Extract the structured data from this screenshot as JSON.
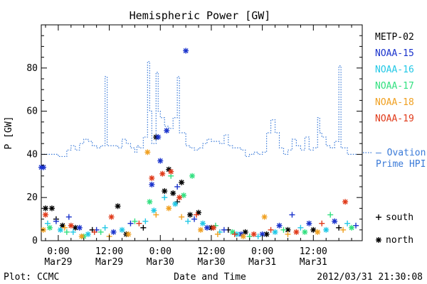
{
  "chart_data": {
    "type": "scatter",
    "title": "Hemispheric Power [GW]",
    "ylabel": "P [GW]",
    "xlabel": "Date and Time",
    "ylim": [
      0,
      100
    ],
    "xlim": [
      "2012-03-28T20:00",
      "2012-03-31T23:30"
    ],
    "grid": false,
    "legend_position": "right",
    "y_ticks": [
      0,
      20,
      40,
      60,
      80
    ],
    "x_ticks": [
      {
        "x": "2012-03-29T00:00",
        "time": "0:00",
        "date": "Mar29"
      },
      {
        "x": "2012-03-29T12:00",
        "time": "12:00",
        "date": "Mar29"
      },
      {
        "x": "2012-03-30T00:00",
        "time": "0:00",
        "date": "Mar30"
      },
      {
        "x": "2012-03-30T12:00",
        "time": "12:00",
        "date": "Mar30"
      },
      {
        "x": "2012-03-31T00:00",
        "time": "0:00",
        "date": "Mar31"
      },
      {
        "x": "2012-03-31T12:00",
        "time": "12:00",
        "date": "Mar31"
      }
    ],
    "legend": [
      {
        "name": "METP-02",
        "color": "#000000"
      },
      {
        "name": "NOAA-15",
        "color": "#1a33cc"
      },
      {
        "name": "NOAA-16",
        "color": "#22c8e6"
      },
      {
        "name": "NOAA-17",
        "color": "#33e080"
      },
      {
        "name": "NOAA-18",
        "color": "#f0a020"
      },
      {
        "name": "NOAA-19",
        "color": "#e03a1a"
      }
    ],
    "ovation_label_line1": "— Ovation",
    "ovation_label_line2": "Prime HPI",
    "ovation_color": "#3a7ad8",
    "symbol_legend": [
      {
        "symbol": "+",
        "label": "south"
      },
      {
        "symbol": "*",
        "label": "north"
      }
    ],
    "ovation_series": [
      [
        "2012-03-28T20:00",
        40
      ],
      [
        "2012-03-28T22:00",
        40
      ],
      [
        "2012-03-29T00:00",
        39
      ],
      [
        "2012-03-29T02:00",
        42
      ],
      [
        "2012-03-29T03:00",
        44
      ],
      [
        "2012-03-29T04:00",
        42
      ],
      [
        "2012-03-29T05:00",
        45
      ],
      [
        "2012-03-29T06:00",
        47
      ],
      [
        "2012-03-29T07:00",
        46
      ],
      [
        "2012-03-29T08:00",
        44
      ],
      [
        "2012-03-29T09:00",
        43
      ],
      [
        "2012-03-29T10:00",
        44
      ],
      [
        "2012-03-29T11:00",
        76
      ],
      [
        "2012-03-29T11:30",
        44
      ],
      [
        "2012-03-29T14:00",
        43
      ],
      [
        "2012-03-29T15:00",
        47
      ],
      [
        "2012-03-29T16:00",
        45
      ],
      [
        "2012-03-29T17:00",
        43
      ],
      [
        "2012-03-29T18:00",
        41
      ],
      [
        "2012-03-29T18:30",
        44
      ],
      [
        "2012-03-29T19:00",
        43
      ],
      [
        "2012-03-29T20:00",
        48
      ],
      [
        "2012-03-29T21:00",
        83
      ],
      [
        "2012-03-29T21:30",
        60
      ],
      [
        "2012-03-29T22:00",
        45
      ],
      [
        "2012-03-29T23:00",
        78
      ],
      [
        "2012-03-29T23:30",
        60
      ],
      [
        "2012-03-30T00:00",
        57
      ],
      [
        "2012-03-30T01:00",
        53
      ],
      [
        "2012-03-30T02:00",
        52
      ],
      [
        "2012-03-30T03:00",
        57
      ],
      [
        "2012-03-30T04:00",
        76
      ],
      [
        "2012-03-30T04:30",
        50
      ],
      [
        "2012-03-30T06:00",
        44
      ],
      [
        "2012-03-30T07:00",
        43
      ],
      [
        "2012-03-30T08:00",
        42
      ],
      [
        "2012-03-30T09:00",
        43
      ],
      [
        "2012-03-30T10:00",
        45
      ],
      [
        "2012-03-30T11:00",
        47
      ],
      [
        "2012-03-30T12:00",
        46
      ],
      [
        "2012-03-30T14:00",
        45
      ],
      [
        "2012-03-30T15:00",
        49
      ],
      [
        "2012-03-30T16:00",
        44
      ],
      [
        "2012-03-30T17:00",
        43
      ],
      [
        "2012-03-30T18:00",
        43
      ],
      [
        "2012-03-30T19:00",
        42
      ],
      [
        "2012-03-30T20:00",
        39
      ],
      [
        "2012-03-30T21:00",
        40
      ],
      [
        "2012-03-30T22:00",
        41
      ],
      [
        "2012-03-30T23:00",
        40
      ],
      [
        "2012-03-31T00:00",
        41
      ],
      [
        "2012-03-31T01:00",
        50
      ],
      [
        "2012-03-31T02:00",
        56
      ],
      [
        "2012-03-31T03:00",
        50
      ],
      [
        "2012-03-31T04:00",
        43
      ],
      [
        "2012-03-31T05:00",
        40
      ],
      [
        "2012-03-31T06:00",
        42
      ],
      [
        "2012-03-31T07:00",
        47
      ],
      [
        "2012-03-31T08:00",
        44
      ],
      [
        "2012-03-31T09:00",
        42
      ],
      [
        "2012-03-31T10:00",
        48
      ],
      [
        "2012-03-31T11:00",
        42
      ],
      [
        "2012-03-31T12:00",
        43
      ],
      [
        "2012-03-31T13:00",
        57
      ],
      [
        "2012-03-31T13:30",
        50
      ],
      [
        "2012-03-31T14:00",
        48
      ],
      [
        "2012-03-31T15:00",
        44
      ],
      [
        "2012-03-31T16:00",
        43
      ],
      [
        "2012-03-31T17:00",
        46
      ],
      [
        "2012-03-31T18:00",
        81
      ],
      [
        "2012-03-31T18:30",
        43
      ],
      [
        "2012-03-31T20:00",
        40
      ],
      [
        "2012-03-31T21:00",
        40
      ]
    ],
    "series": [
      {
        "name": "METP-02",
        "color": "#000000",
        "points": [
          [
            "2012-03-28T21:00",
            15,
            "*"
          ],
          [
            "2012-03-28T22:30",
            15,
            "*"
          ],
          [
            "2012-03-28T23:30",
            10,
            "+"
          ],
          [
            "2012-03-29T01:00",
            7,
            "*"
          ],
          [
            "2012-03-29T04:00",
            6,
            "*"
          ],
          [
            "2012-03-29T08:00",
            5,
            "+"
          ],
          [
            "2012-03-29T14:00",
            16,
            "*"
          ],
          [
            "2012-03-29T16:00",
            3,
            "*"
          ],
          [
            "2012-03-29T20:00",
            6,
            "+"
          ],
          [
            "2012-03-29T23:00",
            48,
            "*"
          ],
          [
            "2012-03-30T01:00",
            23,
            "*"
          ],
          [
            "2012-03-30T02:00",
            33,
            "*"
          ],
          [
            "2012-03-30T03:00",
            22,
            "*"
          ],
          [
            "2012-03-30T04:00",
            18,
            "+"
          ],
          [
            "2012-03-30T05:00",
            27,
            "*"
          ],
          [
            "2012-03-30T07:00",
            12,
            "*"
          ],
          [
            "2012-03-30T09:00",
            13,
            "*"
          ],
          [
            "2012-03-30T12:00",
            6,
            "*"
          ],
          [
            "2012-03-30T16:00",
            5,
            "+"
          ],
          [
            "2012-03-30T20:00",
            4,
            "*"
          ],
          [
            "2012-03-31T01:00",
            3,
            "*"
          ],
          [
            "2012-03-31T06:00",
            5,
            "*"
          ],
          [
            "2012-03-31T12:00",
            5,
            "*"
          ],
          [
            "2012-03-31T18:00",
            6,
            "+"
          ]
        ]
      },
      {
        "name": "NOAA-15",
        "color": "#1a33cc",
        "points": [
          [
            "2012-03-28T20:30",
            34,
            "*"
          ],
          [
            "2012-03-28T20:00",
            34,
            "*"
          ],
          [
            "2012-03-28T23:30",
            9,
            "+"
          ],
          [
            "2012-03-29T02:30",
            11,
            "+"
          ],
          [
            "2012-03-29T05:00",
            6,
            "*"
          ],
          [
            "2012-03-29T09:00",
            5,
            "+"
          ],
          [
            "2012-03-29T13:00",
            4,
            "*"
          ],
          [
            "2012-03-29T17:00",
            8,
            "+"
          ],
          [
            "2012-03-29T22:00",
            26,
            "*"
          ],
          [
            "2012-03-29T23:30",
            48,
            "*"
          ],
          [
            "2012-03-30T00:00",
            37,
            "*"
          ],
          [
            "2012-03-30T01:30",
            51,
            "*"
          ],
          [
            "2012-03-30T04:00",
            25,
            "+"
          ],
          [
            "2012-03-30T06:00",
            88,
            "*"
          ],
          [
            "2012-03-30T08:00",
            10,
            "+"
          ],
          [
            "2012-03-30T11:00",
            6,
            "*"
          ],
          [
            "2012-03-30T15:00",
            5,
            "+"
          ],
          [
            "2012-03-30T19:00",
            3,
            "*"
          ],
          [
            "2012-03-31T00:00",
            3,
            "*"
          ],
          [
            "2012-03-31T04:00",
            7,
            "*"
          ],
          [
            "2012-03-31T07:00",
            12,
            "+"
          ],
          [
            "2012-03-31T11:00",
            8,
            "*"
          ],
          [
            "2012-03-31T17:00",
            9,
            "*"
          ],
          [
            "2012-03-31T22:00",
            7,
            "+"
          ]
        ]
      },
      {
        "name": "NOAA-16",
        "color": "#22c8e6",
        "points": [
          [
            "2012-03-28T21:30",
            8,
            "+"
          ],
          [
            "2012-03-29T00:30",
            5,
            "*"
          ],
          [
            "2012-03-29T03:30",
            4,
            "+"
          ],
          [
            "2012-03-29T07:00",
            3,
            "*"
          ],
          [
            "2012-03-29T11:00",
            6,
            "+"
          ],
          [
            "2012-03-29T15:00",
            5,
            "*"
          ],
          [
            "2012-03-29T20:30",
            9,
            "+"
          ],
          [
            "2012-03-29T22:30",
            14,
            "*"
          ],
          [
            "2012-03-30T01:00",
            20,
            "+"
          ],
          [
            "2012-03-30T03:30",
            17,
            "*"
          ],
          [
            "2012-03-30T06:30",
            9,
            "+"
          ],
          [
            "2012-03-30T10:00",
            8,
            "*"
          ],
          [
            "2012-03-30T14:00",
            4,
            "+"
          ],
          [
            "2012-03-30T18:00",
            3,
            "*"
          ],
          [
            "2012-03-30T23:00",
            2,
            "+"
          ],
          [
            "2012-03-31T03:00",
            4,
            "*"
          ],
          [
            "2012-03-31T09:00",
            6,
            "+"
          ],
          [
            "2012-03-31T15:00",
            5,
            "*"
          ],
          [
            "2012-03-31T20:00",
            8,
            "+"
          ]
        ]
      },
      {
        "name": "NOAA-17",
        "color": "#33e080",
        "points": [
          [
            "2012-03-28T22:00",
            6,
            "*"
          ],
          [
            "2012-03-29T02:00",
            4,
            "+"
          ],
          [
            "2012-03-29T06:00",
            2,
            "*"
          ],
          [
            "2012-03-29T10:00",
            4,
            "+"
          ],
          [
            "2012-03-29T18:00",
            9,
            "+"
          ],
          [
            "2012-03-29T21:30",
            18,
            "*"
          ],
          [
            "2012-03-30T02:30",
            30,
            "+"
          ],
          [
            "2012-03-30T05:30",
            21,
            "*"
          ],
          [
            "2012-03-30T07:30",
            30,
            "*"
          ],
          [
            "2012-03-30T13:00",
            7,
            "+"
          ],
          [
            "2012-03-30T17:00",
            4,
            "*"
          ],
          [
            "2012-03-30T21:00",
            2,
            "+"
          ],
          [
            "2012-03-31T05:00",
            5,
            "+"
          ],
          [
            "2012-03-31T10:00",
            4,
            "*"
          ],
          [
            "2012-03-31T16:00",
            12,
            "+"
          ],
          [
            "2012-03-31T21:00",
            6,
            "*"
          ]
        ]
      },
      {
        "name": "NOAA-18",
        "color": "#f0a020",
        "points": [
          [
            "2012-03-28T20:30",
            5,
            "*"
          ],
          [
            "2012-03-29T01:30",
            6,
            "+"
          ],
          [
            "2012-03-29T05:30",
            2,
            "*"
          ],
          [
            "2012-03-29T12:00",
            2,
            "+"
          ],
          [
            "2012-03-29T16:30",
            3,
            "*"
          ],
          [
            "2012-03-29T21:00",
            41,
            "*"
          ],
          [
            "2012-03-29T23:00",
            12,
            "+"
          ],
          [
            "2012-03-30T02:00",
            15,
            "*"
          ],
          [
            "2012-03-30T05:00",
            11,
            "+"
          ],
          [
            "2012-03-30T09:30",
            5,
            "*"
          ],
          [
            "2012-03-30T13:30",
            3,
            "+"
          ],
          [
            "2012-03-30T19:30",
            2,
            "*"
          ],
          [
            "2012-03-31T00:30",
            11,
            "*"
          ],
          [
            "2012-03-31T06:00",
            3,
            "+"
          ],
          [
            "2012-03-31T13:00",
            4,
            "*"
          ],
          [
            "2012-03-31T19:00",
            5,
            "+"
          ]
        ]
      },
      {
        "name": "NOAA-19",
        "color": "#e03a1a",
        "points": [
          [
            "2012-03-28T21:00",
            12,
            "*"
          ],
          [
            "2012-03-29T03:00",
            7,
            "*"
          ],
          [
            "2012-03-29T08:30",
            4,
            "+"
          ],
          [
            "2012-03-29T12:30",
            11,
            "*"
          ],
          [
            "2012-03-29T19:00",
            8,
            "+"
          ],
          [
            "2012-03-29T22:00",
            29,
            "*"
          ],
          [
            "2012-03-30T00:30",
            31,
            "*"
          ],
          [
            "2012-03-30T02:30",
            32,
            "*"
          ],
          [
            "2012-03-30T04:30",
            20,
            "*"
          ],
          [
            "2012-03-30T08:30",
            12,
            "+"
          ],
          [
            "2012-03-30T12:30",
            6,
            "*"
          ],
          [
            "2012-03-30T17:30",
            3,
            "+"
          ],
          [
            "2012-03-30T22:00",
            3,
            "*"
          ],
          [
            "2012-03-31T02:00",
            5,
            "+"
          ],
          [
            "2012-03-31T08:00",
            4,
            "*"
          ],
          [
            "2012-03-31T14:00",
            8,
            "+"
          ],
          [
            "2012-03-31T19:30",
            18,
            "*"
          ]
        ]
      }
    ]
  },
  "footer": {
    "plot_credit": "Plot: CCMC",
    "timestamp": "2012/03/31 21:30:08"
  }
}
